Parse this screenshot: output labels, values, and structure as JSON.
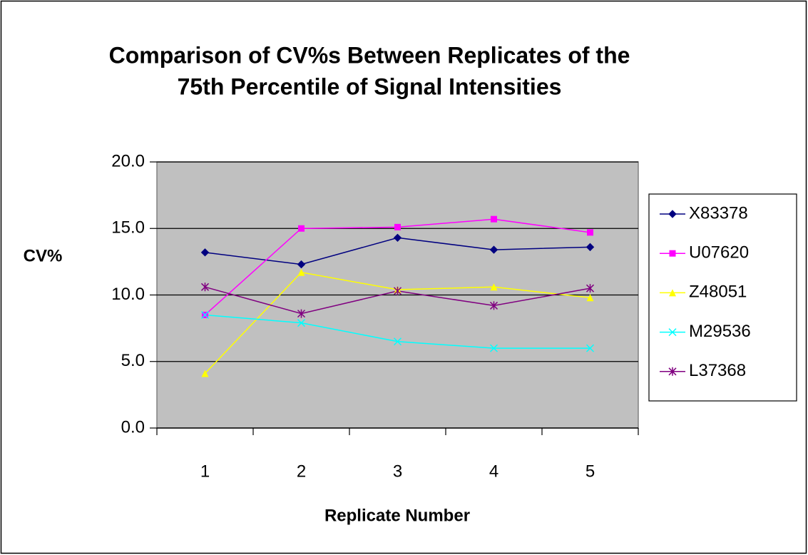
{
  "chart_data": {
    "type": "line",
    "title": [
      "Comparison of CV%s Between Replicates of the",
      "75th Percentile of Signal Intensities"
    ],
    "x_label": "Replicate Number",
    "y_label": "CV%",
    "categories": [
      "1",
      "2",
      "3",
      "4",
      "5"
    ],
    "series": [
      {
        "name": "X83378",
        "color": "#000080",
        "marker": "diamond",
        "values": [
          13.2,
          12.3,
          14.3,
          13.4,
          13.6
        ]
      },
      {
        "name": "U07620",
        "color": "#ff00ff",
        "marker": "square",
        "values": [
          8.5,
          15.0,
          15.1,
          15.7,
          14.7
        ]
      },
      {
        "name": "Z48051",
        "color": "#ffff00",
        "marker": "triangle",
        "values": [
          4.1,
          11.7,
          10.4,
          10.6,
          9.8
        ]
      },
      {
        "name": "M29536",
        "color": "#00ffff",
        "marker": "x",
        "values": [
          8.5,
          7.9,
          6.5,
          6.0,
          6.0
        ]
      },
      {
        "name": "L37368",
        "color": "#800080",
        "marker": "star",
        "values": [
          10.6,
          8.6,
          10.3,
          9.2,
          10.5
        ]
      }
    ],
    "ylim": [
      0,
      20
    ],
    "yticks": [
      {
        "value": 0,
        "label": "0.0"
      },
      {
        "value": 5,
        "label": "5.0"
      },
      {
        "value": 10,
        "label": "10.0"
      },
      {
        "value": 15,
        "label": "15.0"
      },
      {
        "value": 20,
        "label": "20.0"
      }
    ],
    "grid": true,
    "plot_background": "#c0c0c0",
    "legend": "right"
  }
}
